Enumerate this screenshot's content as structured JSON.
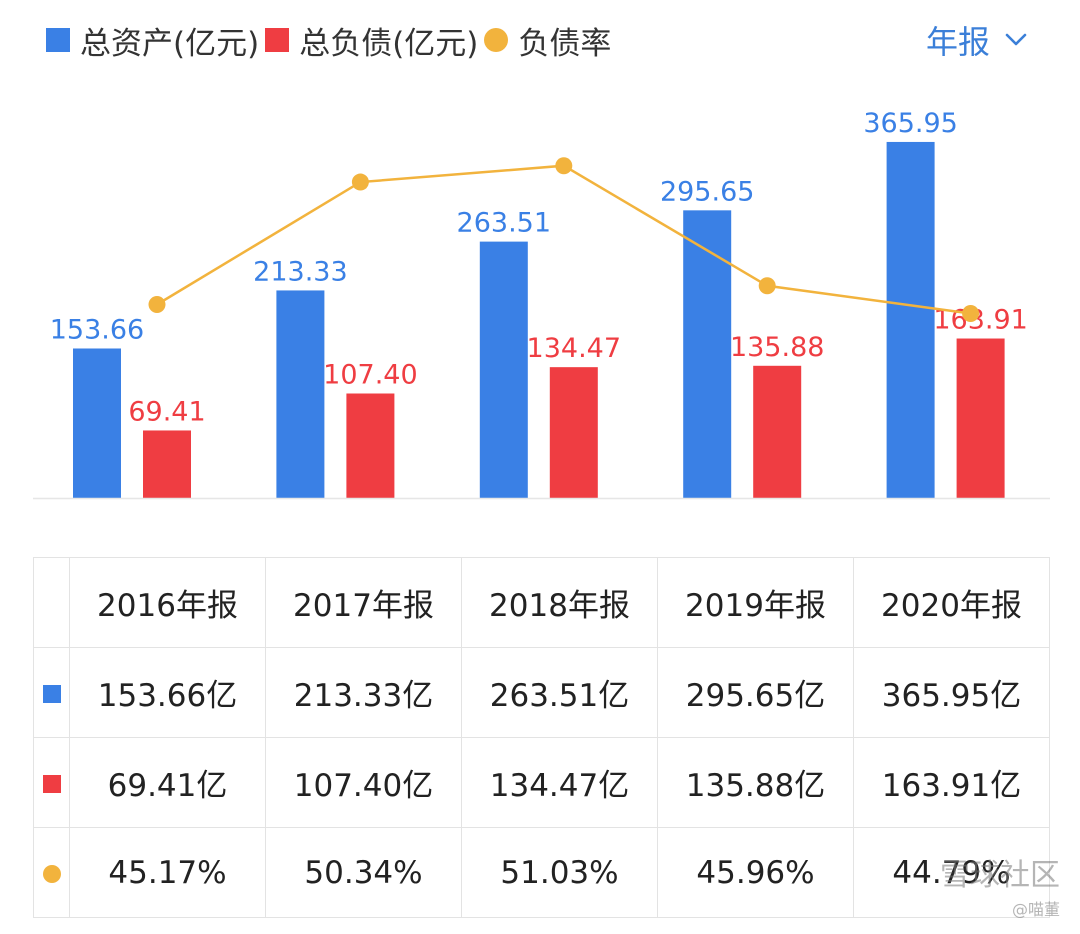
{
  "legend": {
    "assets": "总资产(亿元)",
    "liabilities": "总负债(亿元)",
    "ratio": "负债率"
  },
  "period_selector": {
    "label": "年报",
    "icon": "chevron-down-icon"
  },
  "colors": {
    "assets": "#3a80e5",
    "liabilities": "#ef3d42",
    "ratio": "#f2b33d",
    "period": "#3b7fd8",
    "grid": "#e3e3e3"
  },
  "chart_data": {
    "type": "bar",
    "categories": [
      "2016年报",
      "2017年报",
      "2018年报",
      "2019年报",
      "2020年报"
    ],
    "series": [
      {
        "name": "总资产(亿元)",
        "kind": "bar",
        "values": [
          153.66,
          213.33,
          263.51,
          295.65,
          365.95
        ],
        "labels": [
          "153.66",
          "213.33",
          "263.51",
          "295.65",
          "365.95"
        ]
      },
      {
        "name": "总负债(亿元)",
        "kind": "bar",
        "values": [
          69.41,
          107.4,
          134.47,
          135.88,
          163.91
        ],
        "labels": [
          "69.41",
          "107.40",
          "134.47",
          "135.88",
          "163.91"
        ]
      },
      {
        "name": "负债率",
        "kind": "line",
        "values": [
          45.17,
          50.34,
          51.03,
          45.96,
          44.79
        ]
      }
    ],
    "ylim": [
      0,
      370
    ],
    "ratio_ylim": [
      37,
      52.2
    ]
  },
  "table": {
    "header": [
      "2016年报",
      "2017年报",
      "2018年报",
      "2019年报",
      "2020年报"
    ],
    "rows": [
      {
        "marker": "assets",
        "cells": [
          "153.66亿",
          "213.33亿",
          "263.51亿",
          "295.65亿",
          "365.95亿"
        ]
      },
      {
        "marker": "liabilities",
        "cells": [
          "69.41亿",
          "107.40亿",
          "134.47亿",
          "135.88亿",
          "163.91亿"
        ]
      },
      {
        "marker": "ratio",
        "cells": [
          "45.17%",
          "50.34%",
          "51.03%",
          "45.96%",
          "44.79%"
        ]
      }
    ]
  },
  "watermark": {
    "text": "雪球社区",
    "handle": "@喵董"
  }
}
